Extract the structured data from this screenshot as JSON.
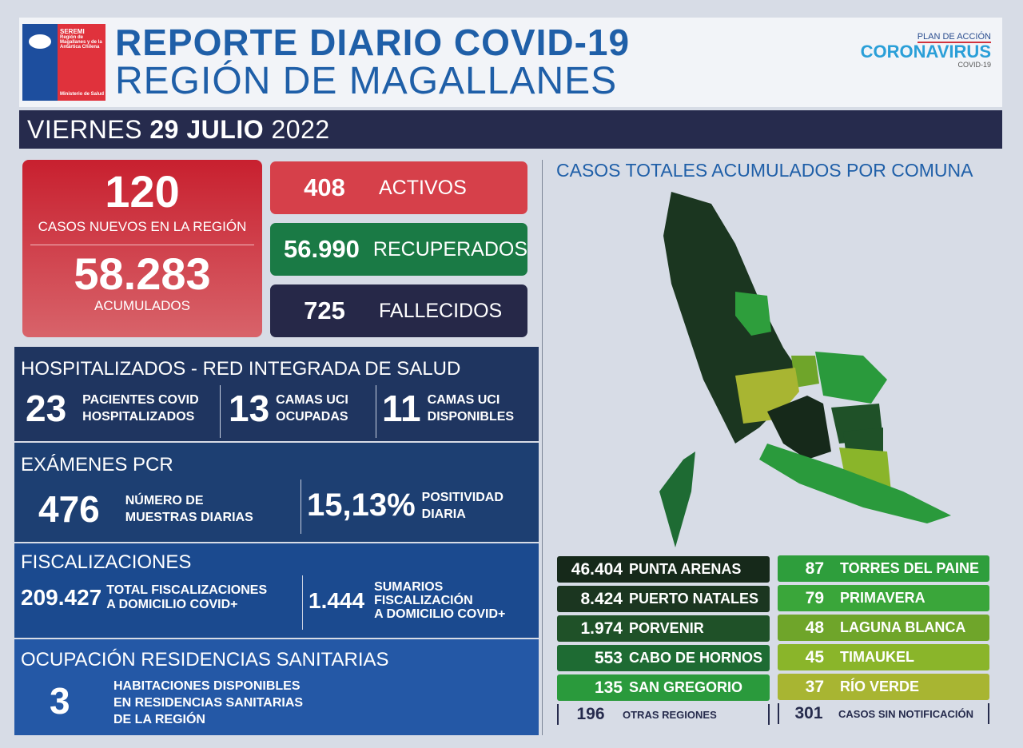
{
  "header": {
    "logo": {
      "seremi": "SEREMI",
      "region": "Región de Magallanes y de la Antártica Chilena",
      "ministerio": "Ministerio de Salud"
    },
    "title_line1": "REPORTE DIARIO COVID-19",
    "title_line2": "REGIÓN DE MAGALLANES",
    "campaign": {
      "plan": "PLAN DE ACCIÓN",
      "name": "CORONAVIRUS",
      "sub": "COVID-19"
    }
  },
  "date": {
    "weekday": "VIERNES",
    "daymonth": "29 JULIO",
    "year": "2022"
  },
  "cases": {
    "new": "120",
    "new_label": "CASOS NUEVOS EN LA REGIÓN",
    "total": "58.283",
    "total_label": "ACUMULADOS"
  },
  "stats": [
    {
      "value": "408",
      "label": "ACTIVOS",
      "color": "#d6404a"
    },
    {
      "value": "56.990",
      "label": "RECUPERADOS",
      "color": "#1a7a45"
    },
    {
      "value": "725",
      "label": "FALLECIDOS",
      "color": "#262848"
    }
  ],
  "hospital": {
    "title": "HOSPITALIZADOS - RED INTEGRADA DE SALUD",
    "items": [
      {
        "value": "23",
        "l1": "PACIENTES COVID",
        "l2": "HOSPITALIZADOS"
      },
      {
        "value": "13",
        "l1": "CAMAS UCI",
        "l2": "OCUPADAS"
      },
      {
        "value": "11",
        "l1": "CAMAS UCI",
        "l2": "DISPONIBLES"
      }
    ]
  },
  "pcr": {
    "title": "EXÁMENES PCR",
    "count": "476",
    "count_l1": "NÚMERO DE",
    "count_l2": "MUESTRAS DIARIAS",
    "positivity": "15,13%",
    "pos_l1": "POSITIVIDAD",
    "pos_l2": "DIARIA"
  },
  "fisc": {
    "title": "FISCALIZACIONES",
    "total": "209.427",
    "total_l1": "TOTAL FISCALIZACIONES",
    "total_l2": "A DOMICILIO COVID+",
    "sum": "1.444",
    "sum_l1": "SUMARIOS",
    "sum_l2": "FISCALIZACIÓN",
    "sum_l3": "A DOMICILIO COVID+"
  },
  "resid": {
    "title": "OCUPACIÓN RESIDENCIAS SANITARIAS",
    "value": "3",
    "l1": "HABITACIONES DISPONIBLES",
    "l2": "EN RESIDENCIAS SANITARIAS",
    "l3": "DE LA REGIÓN"
  },
  "map": {
    "title": "CASOS TOTALES ACUMULADOS POR COMUNA"
  },
  "communes_left": [
    {
      "value": "46.404",
      "name": "PUNTA ARENAS",
      "color": "#16291a"
    },
    {
      "value": "8.424",
      "name": "PUERTO NATALES",
      "color": "#1b3620"
    },
    {
      "value": "1.974",
      "name": "PORVENIR",
      "color": "#1f5128"
    },
    {
      "value": "553",
      "name": "CABO DE HORNOS",
      "color": "#1e6b33"
    },
    {
      "value": "135",
      "name": "SAN GREGORIO",
      "color": "#2a9a3c"
    }
  ],
  "communes_right": [
    {
      "value": "87",
      "name": "TORRES DEL PAINE",
      "color": "#2e9e3c"
    },
    {
      "value": "79",
      "name": "PRIMAVERA",
      "color": "#3aa63a"
    },
    {
      "value": "48",
      "name": "LAGUNA BLANCA",
      "color": "#6fa52a"
    },
    {
      "value": "45",
      "name": "TIMAUKEL",
      "color": "#8ab52a"
    },
    {
      "value": "37",
      "name": "RÍO VERDE",
      "color": "#a8b532"
    }
  ],
  "other": {
    "value": "196",
    "label": "OTRAS REGIONES"
  },
  "unnotified": {
    "value": "301",
    "label": "CASOS SIN NOTIFICACIÓN"
  }
}
